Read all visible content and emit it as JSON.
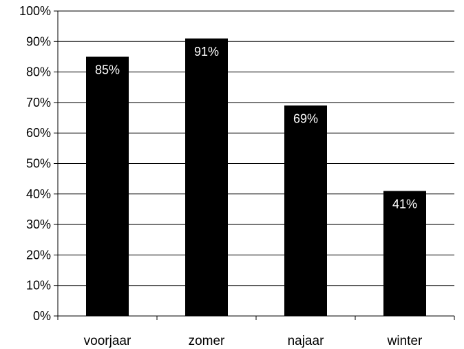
{
  "chart_data": {
    "type": "bar",
    "title": "",
    "xlabel": "",
    "ylabel": "",
    "categories": [
      "voorjaar",
      "zomer",
      "najaar",
      "winter"
    ],
    "values": [
      85,
      91,
      69,
      41
    ],
    "data_labels": [
      "85%",
      "91%",
      "69%",
      "41%"
    ],
    "ylim": [
      0,
      100
    ],
    "yticks": [
      0,
      10,
      20,
      30,
      40,
      50,
      60,
      70,
      80,
      90,
      100
    ],
    "ytick_labels": [
      "0%",
      "10%",
      "20%",
      "30%",
      "40%",
      "50%",
      "60%",
      "70%",
      "80%",
      "90%",
      "100%"
    ],
    "grid": true,
    "legend": "none",
    "colors": {
      "bar": "#000000",
      "grid": "#000000",
      "axis": "#000000",
      "data_label": "#ffffff",
      "background": "#ffffff"
    }
  }
}
